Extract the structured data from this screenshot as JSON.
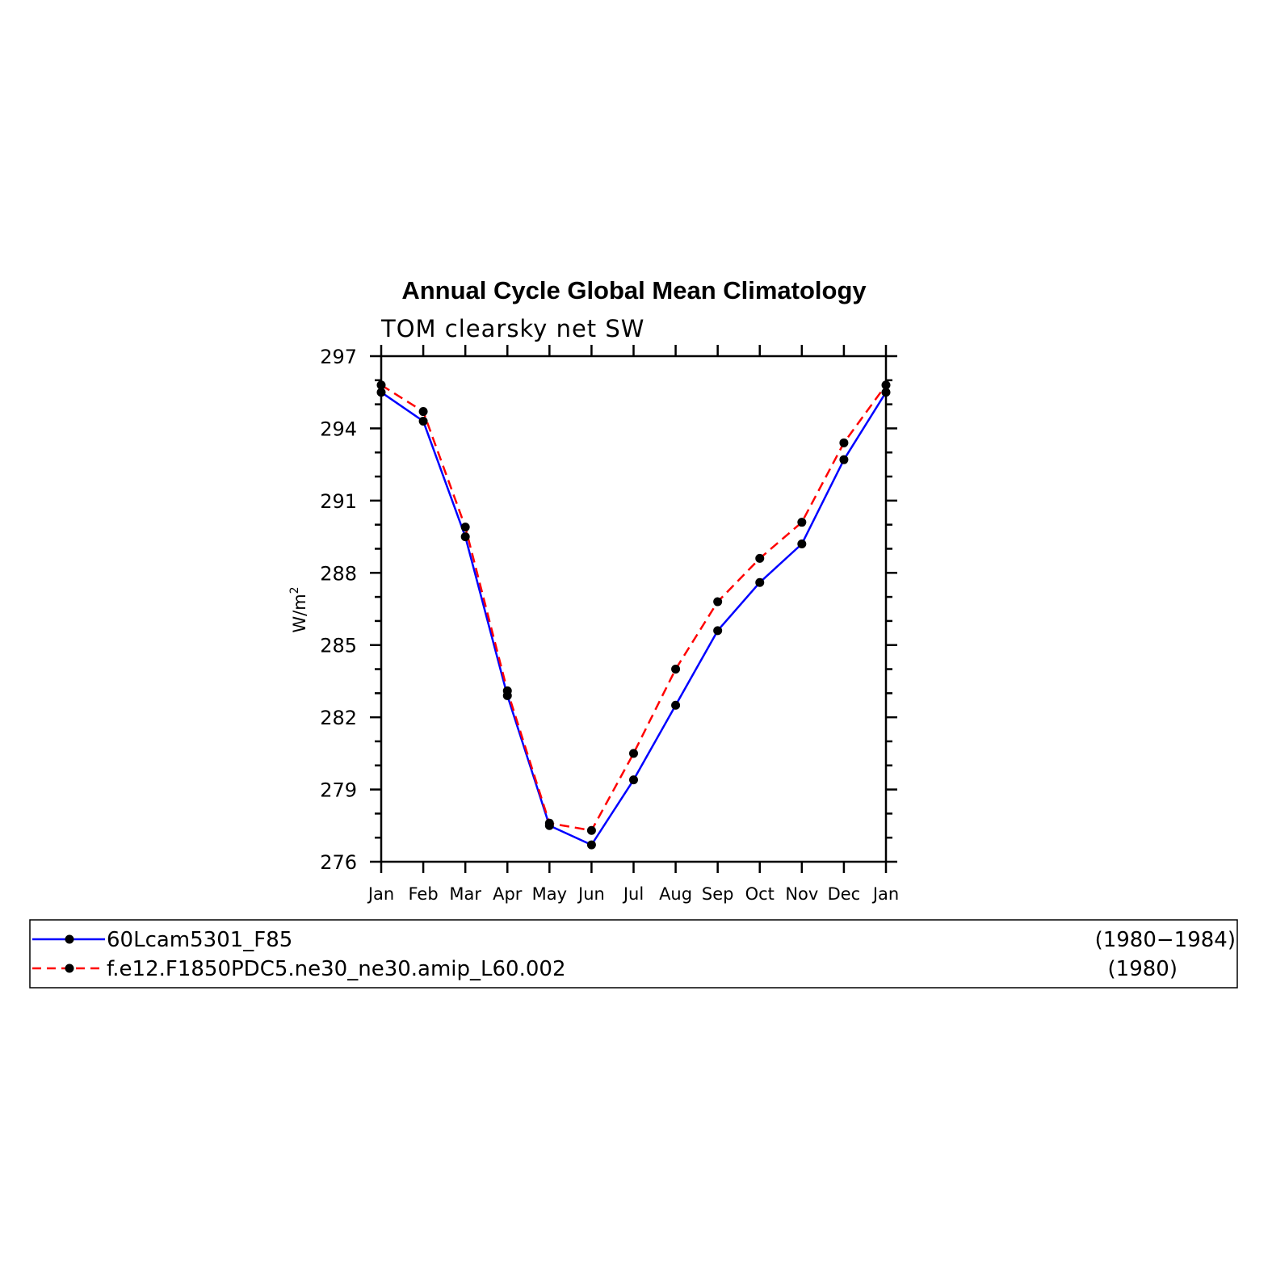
{
  "chart_data": {
    "type": "line",
    "title": "Annual Cycle Global Mean Climatology",
    "subtitle": "TOM clearsky net SW",
    "ylabel": "W/m",
    "ylabel_sup": "2",
    "categories": [
      "Jan",
      "Feb",
      "Mar",
      "Apr",
      "May",
      "Jun",
      "Jul",
      "Aug",
      "Sep",
      "Oct",
      "Nov",
      "Dec",
      "Jan"
    ],
    "ylim": [
      276,
      297
    ],
    "yticks": [
      "297",
      "294",
      "291",
      "288",
      "285",
      "282",
      "279",
      "276"
    ],
    "grid": false,
    "series": [
      {
        "name": "60Lcam5301_F85",
        "period": "(1980−1984)",
        "color": "#0000ff",
        "style": "solid",
        "values": [
          295.5,
          294.3,
          289.5,
          282.9,
          277.5,
          276.7,
          279.4,
          282.5,
          285.6,
          287.6,
          289.2,
          292.7,
          295.5
        ]
      },
      {
        "name": "f.e12.F1850PDC5.ne30_ne30.amip_L60.002",
        "period": "(1980)",
        "color": "#ff0000",
        "style": "dashed",
        "values": [
          295.8,
          294.7,
          289.9,
          283.1,
          277.6,
          277.3,
          280.5,
          284.0,
          286.8,
          288.6,
          290.1,
          293.4,
          295.8
        ]
      }
    ],
    "legend_position": "bottom"
  }
}
